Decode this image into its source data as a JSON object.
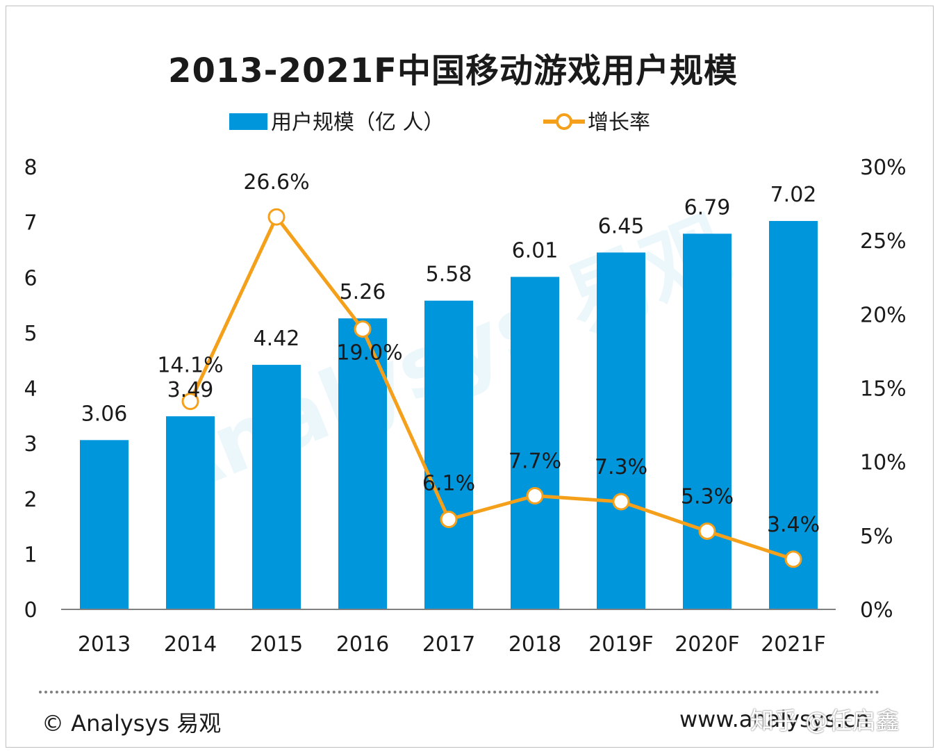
{
  "chart_data": {
    "type": "bar",
    "title": "2013-2021F中国移动游戏用户规模",
    "categories": [
      "2013",
      "2014",
      "2015",
      "2016",
      "2017",
      "2018",
      "2019F",
      "2020F",
      "2021F"
    ],
    "series": [
      {
        "name": "用户规模（亿 人）",
        "type": "bar",
        "axis": "left",
        "color": "#0096dc",
        "values": [
          3.06,
          3.49,
          4.42,
          5.26,
          5.58,
          6.01,
          6.45,
          6.79,
          7.02
        ],
        "labels": [
          "3.06",
          "3.49",
          "4.42",
          "5.26",
          "5.58",
          "6.01",
          "6.45",
          "6.79",
          "7.02"
        ]
      },
      {
        "name": "增长率",
        "type": "line",
        "axis": "right",
        "color": "#f5a01a",
        "values": [
          null,
          14.1,
          26.6,
          19.0,
          6.1,
          7.7,
          7.3,
          5.3,
          3.4
        ],
        "labels": [
          "",
          "14.1%",
          "26.6%",
          "19.0%",
          "6.1%",
          "7.7%",
          "7.3%",
          "5.3%",
          "3.4%"
        ]
      }
    ],
    "y_left": {
      "min": 0,
      "max": 8,
      "ticks": [
        "0",
        "1",
        "2",
        "3",
        "4",
        "5",
        "6",
        "7",
        "8"
      ]
    },
    "y_right": {
      "min": 0,
      "max": 30,
      "ticks": [
        "0%",
        "5%",
        "10%",
        "15%",
        "20%",
        "25%",
        "30%"
      ]
    },
    "legend_position": "top-center",
    "grid": false
  },
  "watermark": "Analysys 易观",
  "footer": {
    "left": "© Analysys 易观",
    "right": "www.analysys.cn",
    "overlay": "知乎 @任启鑫"
  }
}
